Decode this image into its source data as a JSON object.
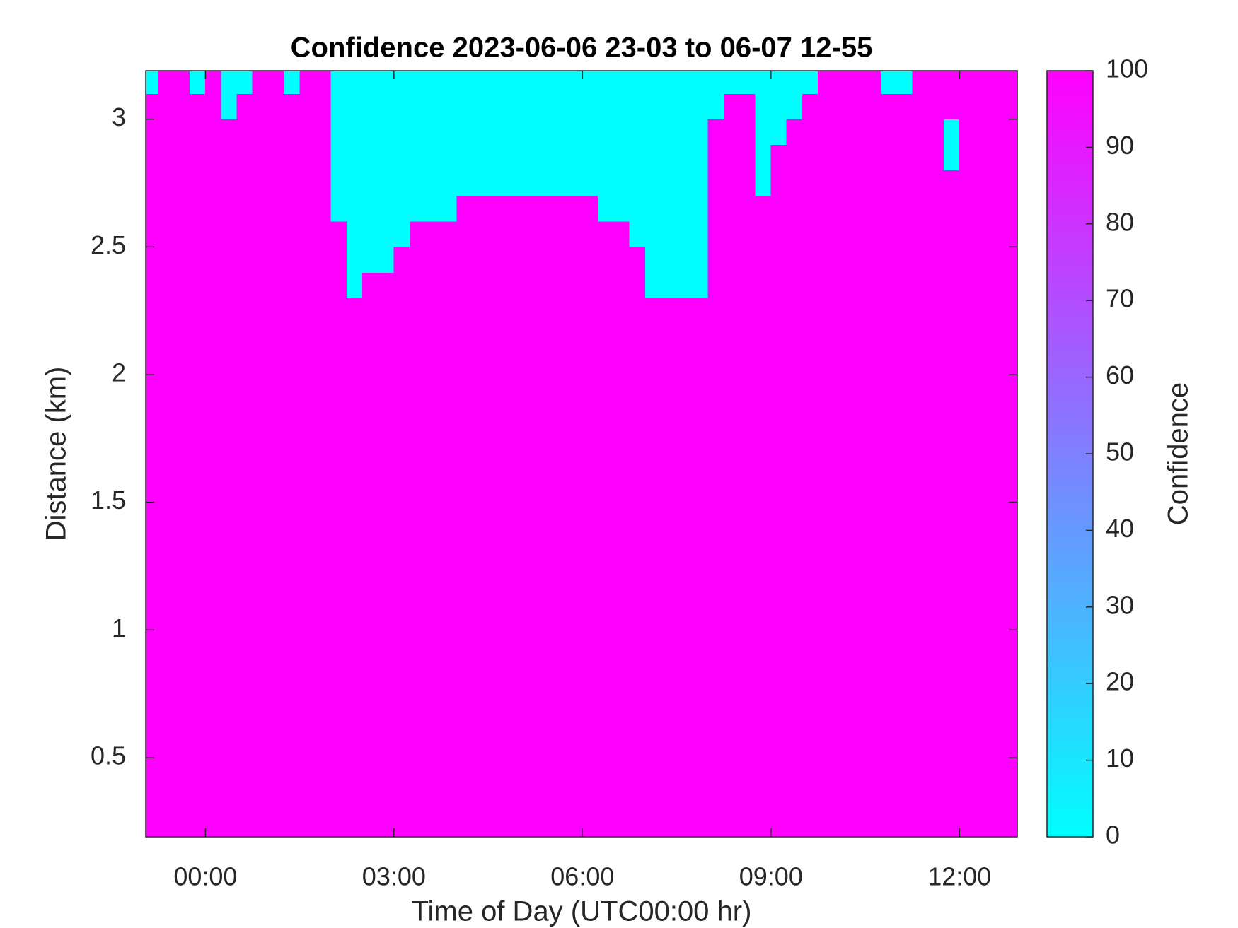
{
  "chart_data": {
    "type": "heatmap",
    "title": "Confidence 2023-06-06 23-03 to 06-07 12-55",
    "x_label": "Time of Day (UTC00:00 hr)",
    "y_label": "Distance (km)",
    "colorbar_label": "Confidence",
    "xlim": [
      -0.95,
      12.92
    ],
    "ylim": [
      0.19,
      3.19
    ],
    "xticks": [
      {
        "value": 0,
        "label": "00:00"
      },
      {
        "value": 3,
        "label": "03:00"
      },
      {
        "value": 6,
        "label": "06:00"
      },
      {
        "value": 9,
        "label": "09:00"
      },
      {
        "value": 12,
        "label": "12:00"
      }
    ],
    "yticks": [
      0.5,
      1,
      1.5,
      2,
      2.5,
      3
    ],
    "zlim": [
      0,
      100
    ],
    "zticks": [
      0,
      10,
      20,
      30,
      40,
      50,
      60,
      70,
      80,
      90,
      100
    ],
    "colormap": {
      "min_color": "#00ffff",
      "max_color": "#ff00ff"
    },
    "x_edges": [
      -1,
      -0.75,
      -0.5,
      -0.25,
      0,
      0.25,
      0.5,
      0.75,
      1,
      1.25,
      1.5,
      1.75,
      2,
      2.25,
      2.5,
      2.75,
      3,
      3.25,
      3.5,
      3.75,
      4,
      4.25,
      4.5,
      4.75,
      5,
      5.25,
      5.5,
      5.75,
      6,
      6.25,
      6.5,
      6.75,
      7,
      7.25,
      7.5,
      7.75,
      8,
      8.25,
      8.5,
      8.75,
      9,
      9.25,
      9.5,
      9.75,
      10,
      10.25,
      10.5,
      10.75,
      11,
      11.25,
      11.5,
      11.75,
      12,
      12.25,
      12.5,
      12.75,
      13
    ],
    "y_edges": [
      0.19,
      2.2,
      2.3,
      2.4,
      2.5,
      2.6,
      2.7,
      2.8,
      2.9,
      3.0,
      3.1,
      3.19
    ],
    "z": [
      [
        100,
        100,
        100,
        100,
        100,
        100,
        100,
        100,
        100,
        100,
        100,
        100,
        100,
        100,
        100,
        100,
        100,
        100,
        100,
        100,
        100,
        100,
        100,
        100,
        100,
        100,
        100,
        100,
        100,
        100,
        100,
        100,
        100,
        100,
        100,
        100,
        100,
        100,
        100,
        100,
        100,
        100,
        100,
        100,
        100,
        100,
        100,
        100,
        100,
        100,
        100,
        100,
        100,
        100,
        100,
        100
      ],
      [
        100,
        100,
        100,
        100,
        100,
        100,
        100,
        100,
        100,
        100,
        100,
        100,
        100,
        100,
        100,
        100,
        100,
        100,
        100,
        100,
        100,
        100,
        100,
        100,
        100,
        100,
        100,
        100,
        100,
        100,
        100,
        100,
        100,
        100,
        100,
        100,
        100,
        100,
        100,
        100,
        100,
        100,
        100,
        100,
        100,
        100,
        100,
        100,
        100,
        100,
        100,
        100,
        100,
        100,
        100,
        100
      ],
      [
        100,
        100,
        100,
        100,
        100,
        100,
        100,
        100,
        100,
        100,
        100,
        100,
        100,
        0,
        100,
        100,
        100,
        100,
        100,
        100,
        100,
        100,
        100,
        100,
        100,
        100,
        100,
        100,
        100,
        100,
        100,
        100,
        0,
        0,
        0,
        0,
        100,
        100,
        100,
        100,
        100,
        100,
        100,
        100,
        100,
        100,
        100,
        100,
        100,
        100,
        100,
        100,
        100,
        100,
        100,
        100
      ],
      [
        100,
        100,
        100,
        100,
        100,
        100,
        100,
        100,
        100,
        100,
        100,
        100,
        100,
        0,
        0,
        0,
        100,
        100,
        100,
        100,
        100,
        100,
        100,
        100,
        100,
        100,
        100,
        100,
        100,
        100,
        100,
        100,
        0,
        0,
        0,
        0,
        100,
        100,
        100,
        100,
        100,
        100,
        100,
        100,
        100,
        100,
        100,
        100,
        100,
        100,
        100,
        100,
        100,
        100,
        100,
        100
      ],
      [
        100,
        100,
        100,
        100,
        100,
        100,
        100,
        100,
        100,
        100,
        100,
        100,
        100,
        0,
        0,
        0,
        0,
        100,
        100,
        100,
        100,
        100,
        100,
        100,
        100,
        100,
        100,
        100,
        100,
        100,
        100,
        0,
        0,
        0,
        0,
        0,
        100,
        100,
        100,
        100,
        100,
        100,
        100,
        100,
        100,
        100,
        100,
        100,
        100,
        100,
        100,
        100,
        100,
        100,
        100,
        100
      ],
      [
        100,
        100,
        100,
        100,
        100,
        100,
        100,
        100,
        100,
        100,
        100,
        100,
        0,
        0,
        0,
        0,
        0,
        0,
        0,
        0,
        100,
        100,
        100,
        100,
        100,
        100,
        100,
        100,
        100,
        0,
        0,
        0,
        0,
        0,
        0,
        0,
        100,
        100,
        100,
        100,
        100,
        100,
        100,
        100,
        100,
        100,
        100,
        100,
        100,
        100,
        100,
        100,
        100,
        100,
        100,
        100
      ],
      [
        100,
        100,
        100,
        100,
        100,
        100,
        100,
        100,
        100,
        100,
        100,
        100,
        0,
        0,
        0,
        0,
        0,
        0,
        0,
        0,
        0,
        0,
        0,
        0,
        0,
        0,
        0,
        0,
        0,
        0,
        0,
        0,
        0,
        0,
        0,
        0,
        100,
        100,
        100,
        0,
        100,
        100,
        100,
        100,
        100,
        100,
        100,
        100,
        100,
        100,
        100,
        100,
        100,
        100,
        100,
        100
      ],
      [
        100,
        100,
        100,
        100,
        100,
        100,
        100,
        100,
        100,
        100,
        100,
        100,
        0,
        0,
        0,
        0,
        0,
        0,
        0,
        0,
        0,
        0,
        0,
        0,
        0,
        0,
        0,
        0,
        0,
        0,
        0,
        0,
        0,
        0,
        0,
        0,
        100,
        100,
        100,
        0,
        100,
        100,
        100,
        100,
        100,
        100,
        100,
        100,
        100,
        100,
        100,
        0,
        100,
        100,
        100,
        100
      ],
      [
        100,
        100,
        100,
        100,
        100,
        100,
        100,
        100,
        100,
        100,
        100,
        100,
        0,
        0,
        0,
        0,
        0,
        0,
        0,
        0,
        0,
        0,
        0,
        0,
        0,
        0,
        0,
        0,
        0,
        0,
        0,
        0,
        0,
        0,
        0,
        0,
        100,
        100,
        100,
        0,
        0,
        100,
        100,
        100,
        100,
        100,
        100,
        100,
        100,
        100,
        100,
        0,
        100,
        100,
        100,
        100
      ],
      [
        100,
        100,
        100,
        100,
        100,
        0,
        100,
        100,
        100,
        100,
        100,
        100,
        0,
        0,
        0,
        0,
        0,
        0,
        0,
        0,
        0,
        0,
        0,
        0,
        0,
        0,
        0,
        0,
        0,
        0,
        0,
        0,
        0,
        0,
        0,
        0,
        0,
        100,
        100,
        0,
        0,
        0,
        100,
        100,
        100,
        100,
        100,
        100,
        100,
        100,
        100,
        100,
        100,
        100,
        100,
        100
      ],
      [
        0,
        100,
        100,
        0,
        100,
        0,
        0,
        100,
        100,
        0,
        100,
        100,
        0,
        0,
        0,
        0,
        0,
        0,
        0,
        0,
        0,
        0,
        0,
        0,
        0,
        0,
        0,
        0,
        0,
        0,
        0,
        0,
        0,
        0,
        0,
        0,
        0,
        0,
        0,
        0,
        0,
        0,
        0,
        100,
        100,
        100,
        100,
        0,
        0,
        100,
        100,
        100,
        100,
        100,
        100,
        100
      ]
    ]
  }
}
